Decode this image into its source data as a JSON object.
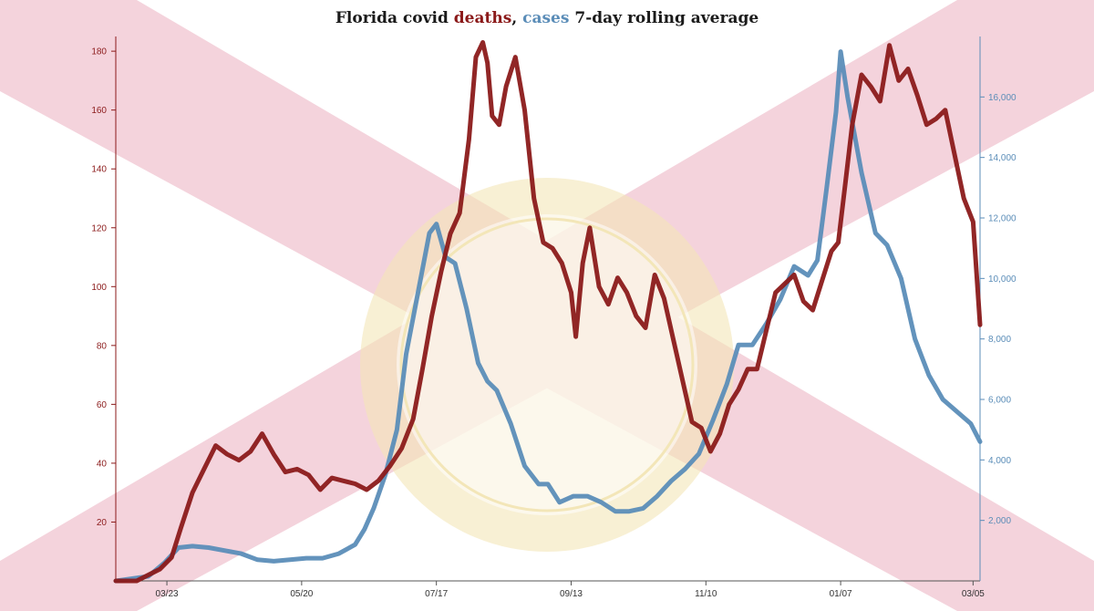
{
  "chart_data": {
    "type": "line",
    "title": {
      "prefix": "Florida covid ",
      "deaths_word": "deaths",
      "sep": ", ",
      "cases_word": "cases",
      "suffix": " 7-day rolling average"
    },
    "colors": {
      "deaths": "#8b1a1a",
      "cases": "#5b8db8",
      "flag_red": "#f4d3dc",
      "seal": "#f3e6b8"
    },
    "background": "Florida state flag with state seal (IN GOD WE TRUST)",
    "x_ticks": [
      "03/23",
      "05/20",
      "07/17",
      "09/13",
      "11/10",
      "01/07",
      "03/05"
    ],
    "x_start": "2020-03-01",
    "x_end": "2021-03-08",
    "y_left": {
      "label": "deaths",
      "ticks": [
        "20",
        "40",
        "60",
        "80",
        "100",
        "120",
        "140",
        "160",
        "180"
      ],
      "ylim": [
        0,
        185
      ]
    },
    "y_right": {
      "label": "cases",
      "ticks": [
        "2,000",
        "4,000",
        "6,000",
        "8,000",
        "10,000",
        "12,000",
        "14,000",
        "16,000"
      ],
      "ylim": [
        0,
        18000
      ]
    },
    "grid": false,
    "series": [
      {
        "name": "deaths",
        "axis": "left",
        "points": [
          [
            "2020-03-01",
            0
          ],
          [
            "2020-03-10",
            0
          ],
          [
            "2020-03-15",
            2
          ],
          [
            "2020-03-20",
            4
          ],
          [
            "2020-03-25",
            8
          ],
          [
            "2020-03-29",
            18
          ],
          [
            "2020-04-03",
            30
          ],
          [
            "2020-04-08",
            38
          ],
          [
            "2020-04-13",
            46
          ],
          [
            "2020-04-18",
            43
          ],
          [
            "2020-04-23",
            41
          ],
          [
            "2020-04-28",
            44
          ],
          [
            "2020-05-03",
            50
          ],
          [
            "2020-05-08",
            43
          ],
          [
            "2020-05-13",
            37
          ],
          [
            "2020-05-18",
            38
          ],
          [
            "2020-05-23",
            36
          ],
          [
            "2020-05-28",
            31
          ],
          [
            "2020-06-02",
            35
          ],
          [
            "2020-06-07",
            34
          ],
          [
            "2020-06-12",
            33
          ],
          [
            "2020-06-17",
            31
          ],
          [
            "2020-06-22",
            34
          ],
          [
            "2020-06-27",
            39
          ],
          [
            "2020-07-02",
            45
          ],
          [
            "2020-07-07",
            55
          ],
          [
            "2020-07-11",
            72
          ],
          [
            "2020-07-15",
            90
          ],
          [
            "2020-07-19",
            105
          ],
          [
            "2020-07-23",
            118
          ],
          [
            "2020-07-27",
            125
          ],
          [
            "2020-07-31",
            150
          ],
          [
            "2020-08-03",
            178
          ],
          [
            "2020-08-06",
            183
          ],
          [
            "2020-08-08",
            176
          ],
          [
            "2020-08-10",
            158
          ],
          [
            "2020-08-13",
            155
          ],
          [
            "2020-08-16",
            168
          ],
          [
            "2020-08-20",
            178
          ],
          [
            "2020-08-24",
            160
          ],
          [
            "2020-08-28",
            130
          ],
          [
            "2020-09-01",
            115
          ],
          [
            "2020-09-05",
            113
          ],
          [
            "2020-09-09",
            108
          ],
          [
            "2020-09-13",
            98
          ],
          [
            "2020-09-15",
            83
          ],
          [
            "2020-09-18",
            108
          ],
          [
            "2020-09-21",
            120
          ],
          [
            "2020-09-25",
            100
          ],
          [
            "2020-09-29",
            94
          ],
          [
            "2020-10-03",
            103
          ],
          [
            "2020-10-07",
            98
          ],
          [
            "2020-10-11",
            90
          ],
          [
            "2020-10-15",
            86
          ],
          [
            "2020-10-19",
            104
          ],
          [
            "2020-10-23",
            96
          ],
          [
            "2020-10-27",
            82
          ],
          [
            "2020-10-31",
            68
          ],
          [
            "2020-11-04",
            54
          ],
          [
            "2020-11-08",
            52
          ],
          [
            "2020-11-12",
            44
          ],
          [
            "2020-11-16",
            50
          ],
          [
            "2020-11-20",
            60
          ],
          [
            "2020-11-24",
            65
          ],
          [
            "2020-11-28",
            72
          ],
          [
            "2020-12-02",
            72
          ],
          [
            "2020-12-06",
            85
          ],
          [
            "2020-12-10",
            98
          ],
          [
            "2020-12-14",
            101
          ],
          [
            "2020-12-18",
            104
          ],
          [
            "2020-12-22",
            95
          ],
          [
            "2020-12-26",
            92
          ],
          [
            "2020-12-30",
            102
          ],
          [
            "2021-01-03",
            112
          ],
          [
            "2021-01-06",
            115
          ],
          [
            "2021-01-09",
            135
          ],
          [
            "2021-01-12",
            155
          ],
          [
            "2021-01-16",
            172
          ],
          [
            "2021-01-20",
            168
          ],
          [
            "2021-01-24",
            163
          ],
          [
            "2021-01-28",
            182
          ],
          [
            "2021-02-01",
            170
          ],
          [
            "2021-02-05",
            174
          ],
          [
            "2021-02-09",
            165
          ],
          [
            "2021-02-13",
            155
          ],
          [
            "2021-02-17",
            157
          ],
          [
            "2021-02-21",
            160
          ],
          [
            "2021-02-25",
            145
          ],
          [
            "2021-03-01",
            130
          ],
          [
            "2021-03-05",
            122
          ],
          [
            "2021-03-08",
            87
          ]
        ]
      },
      {
        "name": "cases",
        "axis": "right",
        "points": [
          [
            "2020-03-01",
            0
          ],
          [
            "2020-03-15",
            150
          ],
          [
            "2020-03-22",
            600
          ],
          [
            "2020-03-28",
            1100
          ],
          [
            "2020-04-03",
            1150
          ],
          [
            "2020-04-10",
            1100
          ],
          [
            "2020-04-17",
            1000
          ],
          [
            "2020-04-24",
            900
          ],
          [
            "2020-05-01",
            700
          ],
          [
            "2020-05-08",
            650
          ],
          [
            "2020-05-15",
            700
          ],
          [
            "2020-05-22",
            750
          ],
          [
            "2020-05-29",
            750
          ],
          [
            "2020-06-05",
            900
          ],
          [
            "2020-06-12",
            1200
          ],
          [
            "2020-06-16",
            1700
          ],
          [
            "2020-06-20",
            2400
          ],
          [
            "2020-06-25",
            3500
          ],
          [
            "2020-06-30",
            5000
          ],
          [
            "2020-07-04",
            7500
          ],
          [
            "2020-07-09",
            9500
          ],
          [
            "2020-07-14",
            11500
          ],
          [
            "2020-07-17",
            11800
          ],
          [
            "2020-07-21",
            10700
          ],
          [
            "2020-07-25",
            10500
          ],
          [
            "2020-07-30",
            9000
          ],
          [
            "2020-08-04",
            7200
          ],
          [
            "2020-08-08",
            6600
          ],
          [
            "2020-08-12",
            6300
          ],
          [
            "2020-08-18",
            5200
          ],
          [
            "2020-08-24",
            3800
          ],
          [
            "2020-08-30",
            3200
          ],
          [
            "2020-09-03",
            3200
          ],
          [
            "2020-09-08",
            2600
          ],
          [
            "2020-09-14",
            2800
          ],
          [
            "2020-09-20",
            2800
          ],
          [
            "2020-09-26",
            2600
          ],
          [
            "2020-10-02",
            2300
          ],
          [
            "2020-10-08",
            2300
          ],
          [
            "2020-10-14",
            2400
          ],
          [
            "2020-10-20",
            2800
          ],
          [
            "2020-10-26",
            3300
          ],
          [
            "2020-11-01",
            3700
          ],
          [
            "2020-11-07",
            4200
          ],
          [
            "2020-11-13",
            5300
          ],
          [
            "2020-11-19",
            6500
          ],
          [
            "2020-11-24",
            7800
          ],
          [
            "2020-11-30",
            7800
          ],
          [
            "2020-12-06",
            8500
          ],
          [
            "2020-12-12",
            9300
          ],
          [
            "2020-12-18",
            10400
          ],
          [
            "2020-12-24",
            10100
          ],
          [
            "2020-12-28",
            10600
          ],
          [
            "2021-01-01",
            13000
          ],
          [
            "2021-01-05",
            15500
          ],
          [
            "2021-01-07",
            17500
          ],
          [
            "2021-01-10",
            16000
          ],
          [
            "2021-01-16",
            13500
          ],
          [
            "2021-01-22",
            11500
          ],
          [
            "2021-01-27",
            11100
          ],
          [
            "2021-02-02",
            10000
          ],
          [
            "2021-02-08",
            8000
          ],
          [
            "2021-02-14",
            6800
          ],
          [
            "2021-02-20",
            6000
          ],
          [
            "2021-02-26",
            5600
          ],
          [
            "2021-03-04",
            5200
          ],
          [
            "2021-03-08",
            4600
          ]
        ]
      }
    ]
  }
}
